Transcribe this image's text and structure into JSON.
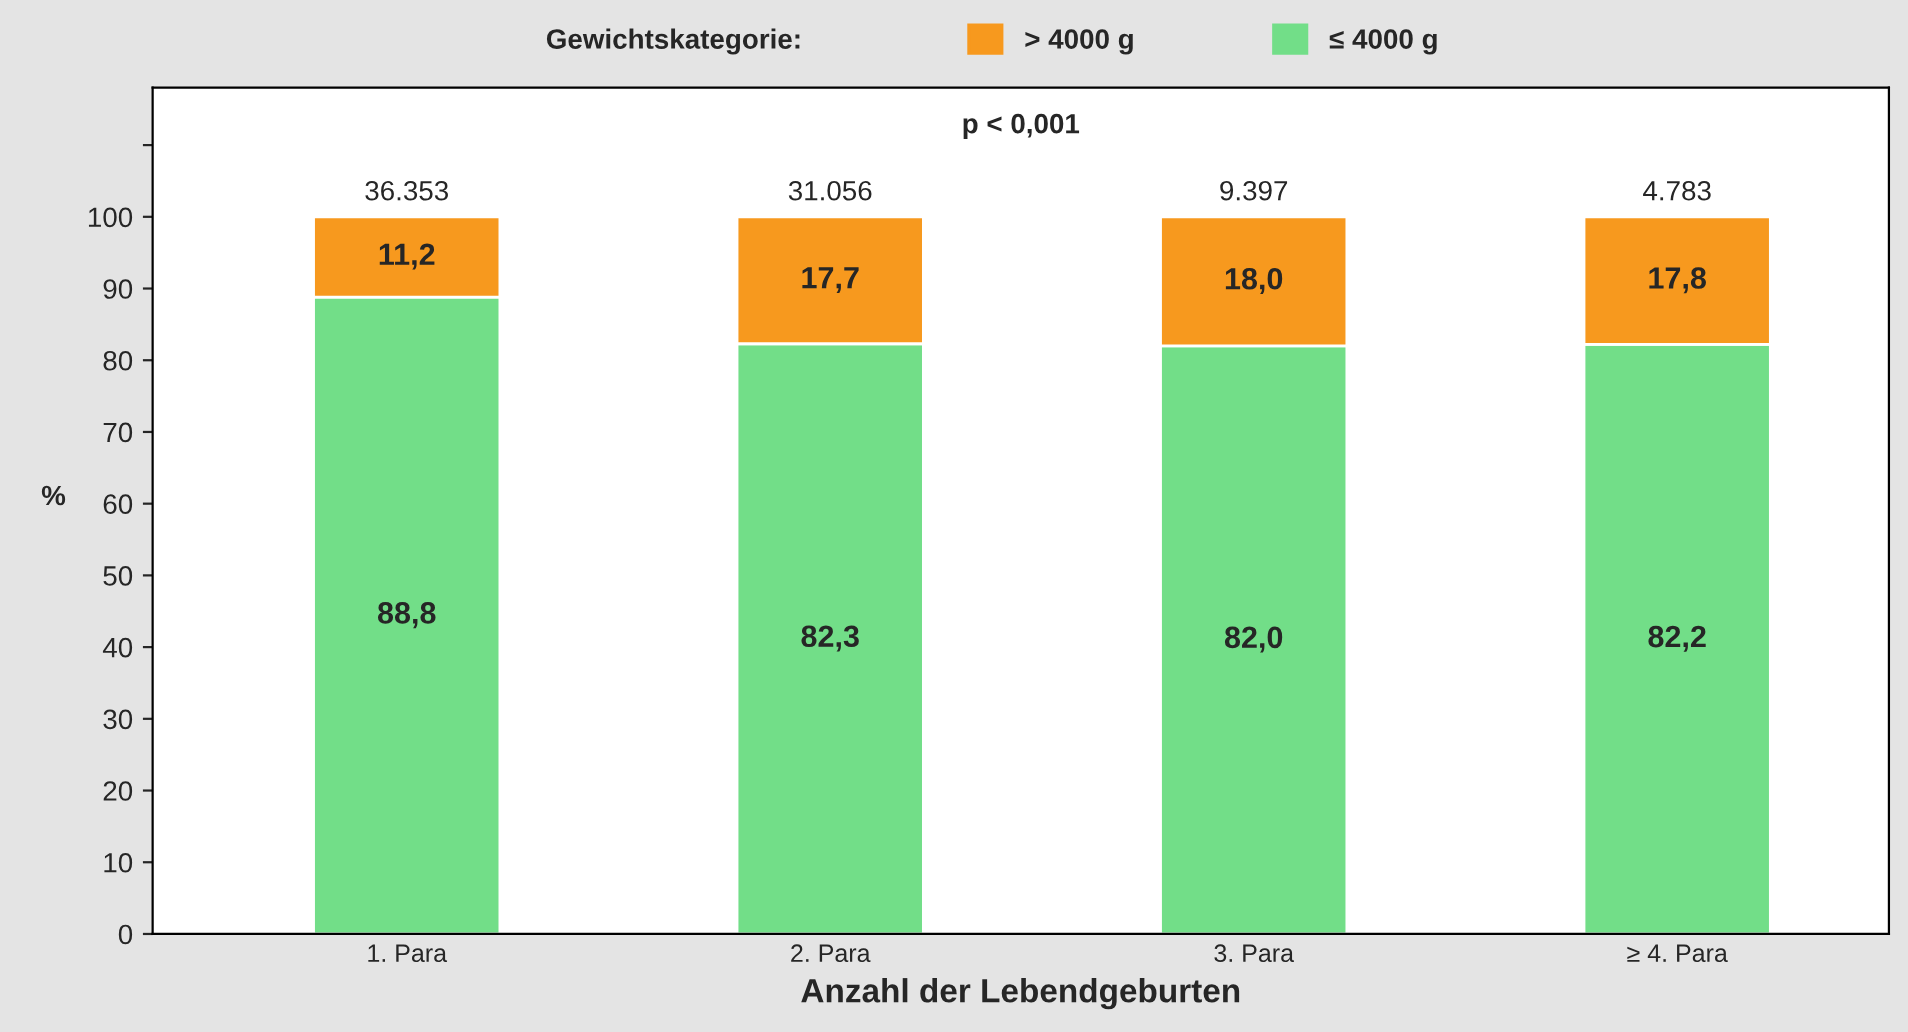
{
  "chart_data": {
    "type": "bar",
    "stacked": true,
    "xlabel": "Anzahl der Lebendgeburten",
    "ylabel": "%",
    "legend_title": "Gewichtskategorie:",
    "annotations": [
      "p < 0,001",
      {
        "text": "36.353",
        "x": "1. Para",
        "y": 100
      },
      {
        "text": "31.056",
        "x": "2. Para",
        "y": 100
      },
      {
        "text": "9.397",
        "x": "3. Para",
        "y": 100
      },
      {
        "text": "4.783",
        "x": "≥ 4. Para",
        "y": 100
      }
    ],
    "categories": [
      "1. Para",
      "2. Para",
      "3. Para",
      "≥ 4. Para"
    ],
    "series": [
      {
        "name": "≤ 4000 g",
        "color": "#72de88",
        "values": [
          88.8,
          82.3,
          82.0,
          82.2
        ],
        "value_labels": [
          "88,8",
          "82,3",
          "82,0",
          "82,2"
        ]
      },
      {
        "name": "> 4000 g",
        "color": "#f7991e",
        "values": [
          11.2,
          17.7,
          18.0,
          17.8
        ],
        "value_labels": [
          "11,2",
          "17,7",
          "18,0",
          "17,8"
        ]
      }
    ],
    "ylim": [
      0,
      118
    ],
    "yticks": [
      0,
      10,
      20,
      30,
      40,
      50,
      60,
      70,
      80,
      90,
      100,
      {
        "value": 110,
        "label": null
      }
    ],
    "grid": false,
    "legend": "top"
  }
}
